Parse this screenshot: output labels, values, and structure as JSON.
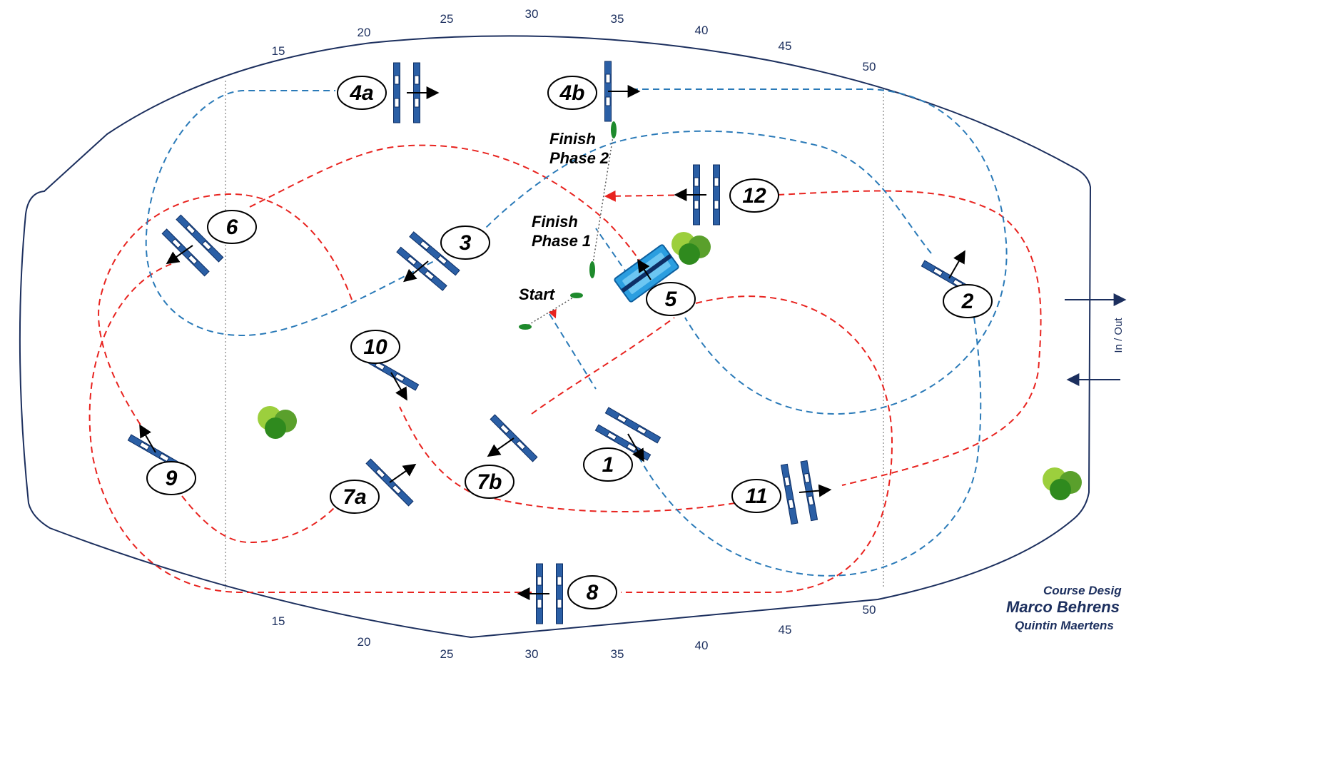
{
  "ticks_top": [
    "15",
    "20",
    "25",
    "30",
    "35",
    "40",
    "45",
    "50"
  ],
  "ticks_bottom": [
    "15",
    "20",
    "25",
    "30",
    "35",
    "40",
    "45",
    "50"
  ],
  "side_label": "In / Out",
  "labels": {
    "finish_phase2_line1": "Finish",
    "finish_phase2_line2": "Phase 2",
    "finish_phase1_line1": "Finish",
    "finish_phase1_line2": "Phase 1",
    "start": "Start"
  },
  "fences": [
    "1",
    "2",
    "3",
    "4a",
    "4b",
    "5",
    "6",
    "7a",
    "7b",
    "8",
    "9",
    "10",
    "11",
    "12"
  ],
  "credit": {
    "line1": "Course Desig",
    "line2": "Marco Behrens",
    "line3": "Quintin Maertens"
  },
  "colors": {
    "arena_outline": "#1c2f5e",
    "phase1_route": "#e8231f",
    "phase2_route": "#2a7ab8",
    "fence_blue": "#2b5fa5",
    "water": "#2b9ee0",
    "tree": "#5aa02c"
  }
}
